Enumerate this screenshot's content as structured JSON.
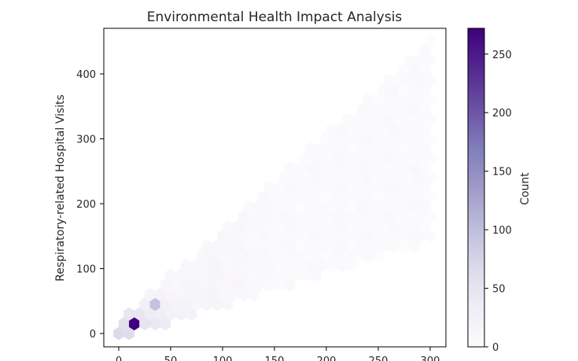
{
  "chart_data": {
    "type": "hexbin",
    "title": "Environmental Health Impact Analysis",
    "xlabel": "",
    "ylabel": "Respiratory-related Hospital Visits",
    "xlim": [
      -10,
      315
    ],
    "ylim": [
      -20,
      470
    ],
    "x_ticks": [
      0,
      50,
      100,
      150,
      200,
      250,
      300
    ],
    "y_ticks": [
      0,
      100,
      200,
      300,
      400
    ],
    "grid": false,
    "colormap": "Purples",
    "colorbar": {
      "label": "Count",
      "range": [
        0,
        272
      ],
      "ticks": [
        0,
        50,
        100,
        150,
        200,
        250
      ]
    },
    "distribution": {
      "description_of_cells": "x from 0 to 300, y between roughly 0.5x and 1.45x; densest near origin",
      "hotspot": {
        "x": 15,
        "y": 15,
        "count": 272
      }
    }
  },
  "colors": {
    "background": "#ffffff",
    "axes": "#000000",
    "text": "#262626",
    "cmap_low": "#fcfbfd",
    "cmap_mid": "#9e9ac8",
    "cmap_high": "#3f007d"
  }
}
